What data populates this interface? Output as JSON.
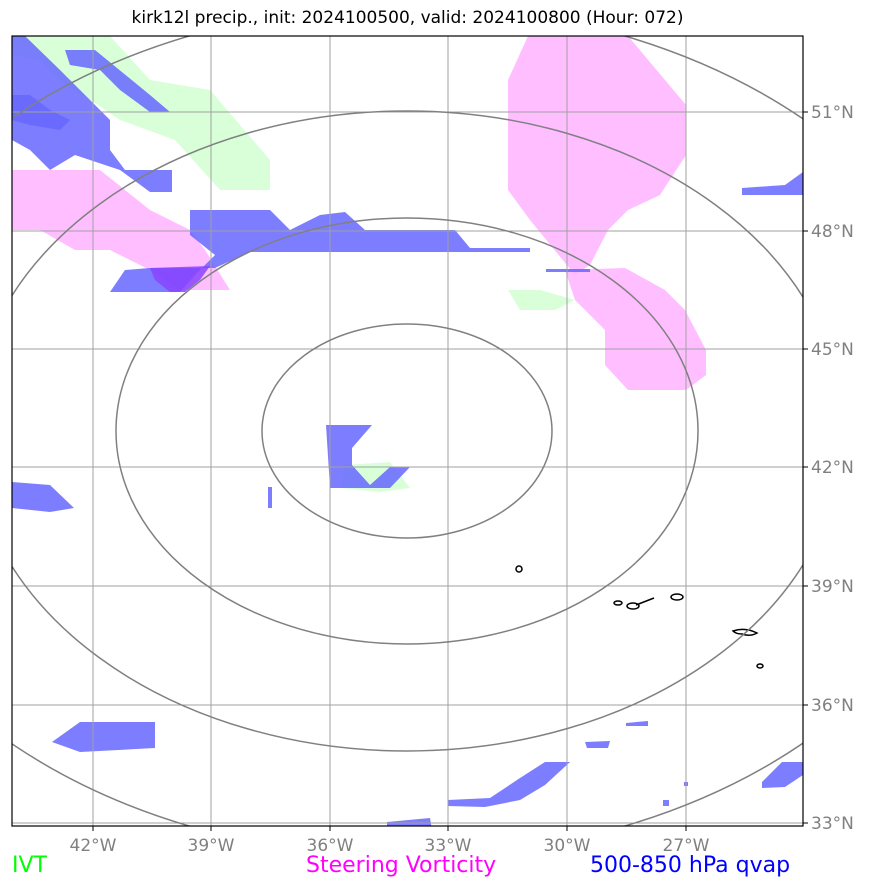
{
  "title": "kirk12l precip., init: 2024100500, valid: 2024100800 (Hour: 072)",
  "legend": {
    "ivt": {
      "label": "IVT",
      "color": "#00ff00"
    },
    "vorticity": {
      "label": "Steering Vorticity",
      "color": "#ff00ff"
    },
    "qvap": {
      "label": "500-850 hPa qvap",
      "color": "#0000ff"
    }
  },
  "colors": {
    "ivt_fill": "#ccffcc",
    "vorticity_fill": "#ffb3ff",
    "qvap_fill": "#6666ff",
    "grid": "#a0a0a0",
    "range_rings": "#808080",
    "tick_label": "#808080"
  },
  "axes": {
    "lon_labels": [
      "42°W",
      "39°W",
      "36°W",
      "33°W",
      "30°W",
      "27°W"
    ],
    "lat_labels": [
      "51°N",
      "48°N",
      "45°N",
      "42°N",
      "39°N",
      "36°N",
      "33°N"
    ]
  },
  "map_extent": {
    "lon": [
      -44,
      -24
    ],
    "lat": [
      33,
      53
    ]
  },
  "storm_center": {
    "lon": -34,
    "lat": 43
  },
  "range_rings_count": 4
}
